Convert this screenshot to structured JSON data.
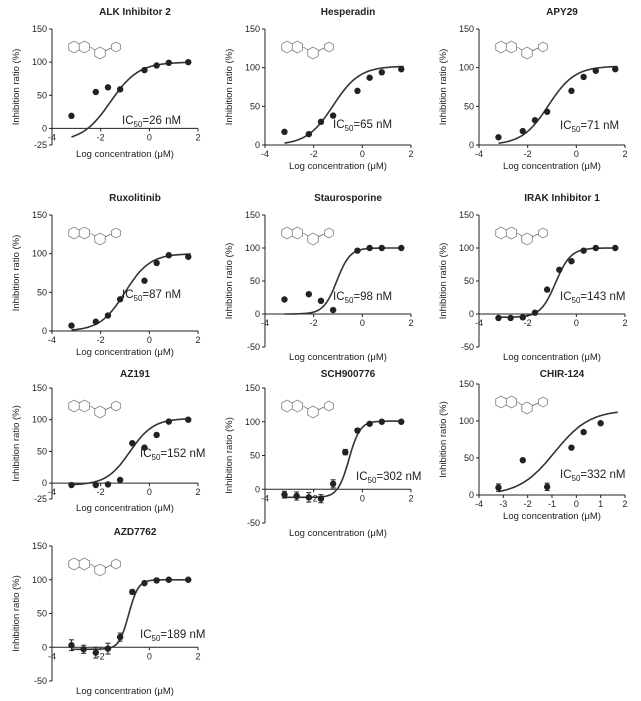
{
  "chart_data": [
    {
      "type": "scatter",
      "title": "ALK Inhibitor 2",
      "ic50_label": "IC50=26 nM",
      "ic50_text": "=26 nM",
      "ic50_value_nM": 26,
      "xlabel": "Log concentration (μM)",
      "ylabel": "Inhibition ratio (%)",
      "xlim": [
        -4,
        2
      ],
      "ylim": [
        -25,
        150
      ],
      "xticks": [
        -4,
        -2,
        0,
        2
      ],
      "yticks": [
        -25,
        0,
        50,
        100,
        150
      ],
      "x": [
        -3.2,
        -2.2,
        -1.7,
        -1.2,
        -0.2,
        0.3,
        0.8,
        1.6
      ],
      "y": [
        19,
        55,
        62,
        59,
        88,
        95,
        99,
        100
      ],
      "fit": {
        "bottom": -20,
        "top": 100,
        "log_ec50": -1.6,
        "hill": 0.75
      }
    },
    {
      "type": "scatter",
      "title": "Hesperadin",
      "ic50_label": "IC50=65 nM",
      "ic50_text": "=65 nM",
      "ic50_value_nM": 65,
      "xlabel": "Log concentration (μM)",
      "ylabel": "Inhibition ratio (%)",
      "xlim": [
        -4,
        2
      ],
      "ylim": [
        0,
        150
      ],
      "xticks": [
        -4,
        -2,
        0,
        2
      ],
      "yticks": [
        0,
        50,
        100,
        150
      ],
      "x": [
        -3.2,
        -2.2,
        -1.7,
        -1.2,
        -0.2,
        0.3,
        0.8,
        1.6
      ],
      "y": [
        17,
        14,
        30,
        38,
        70,
        87,
        94,
        98
      ],
      "fit": {
        "bottom": 0,
        "top": 102,
        "log_ec50": -1.2,
        "hill": 0.8
      }
    },
    {
      "type": "scatter",
      "title": "APY29",
      "ic50_label": "IC50=71 nM",
      "ic50_text": "=71 nM",
      "ic50_value_nM": 71,
      "xlabel": "Log concentration (μM)",
      "ylabel": "Inhibition ratio (%)",
      "xlim": [
        -4,
        2
      ],
      "ylim": [
        0,
        150
      ],
      "xticks": [
        -4,
        -2,
        0,
        2
      ],
      "yticks": [
        0,
        50,
        100,
        150
      ],
      "x": [
        -3.2,
        -2.2,
        -1.7,
        -1.2,
        -0.2,
        0.3,
        0.8,
        1.6
      ],
      "y": [
        10,
        18,
        32,
        43,
        70,
        88,
        96,
        98
      ],
      "fit": {
        "bottom": 0,
        "top": 102,
        "log_ec50": -1.15,
        "hill": 0.8
      }
    },
    {
      "type": "scatter",
      "title": "Ruxolitinib",
      "ic50_label": "IC50=87 nM",
      "ic50_text": "=87 nM",
      "ic50_value_nM": 87,
      "xlabel": "Log concentration (μM)",
      "ylabel": "Inhibition ratio (%)",
      "xlim": [
        -4,
        2
      ],
      "ylim": [
        0,
        150
      ],
      "xticks": [
        -4,
        -2,
        0,
        2
      ],
      "yticks": [
        0,
        50,
        100,
        150
      ],
      "x": [
        -3.2,
        -2.2,
        -1.7,
        -1.2,
        -0.2,
        0.3,
        0.8,
        1.6
      ],
      "y": [
        7,
        12,
        20,
        41,
        65,
        88,
        98,
        96
      ],
      "fit": {
        "bottom": 0,
        "top": 100,
        "log_ec50": -1.0,
        "hill": 0.85
      }
    },
    {
      "type": "scatter",
      "title": "Staurosporine",
      "ic50_label": "IC50=98 nM",
      "ic50_text": "=98 nM",
      "ic50_value_nM": 98,
      "xlabel": "Log concentration (μM)",
      "ylabel": "Inhibition ratio (%)",
      "xlim": [
        -4,
        2
      ],
      "ylim": [
        -50,
        150
      ],
      "xticks": [
        -4,
        -2,
        0,
        2
      ],
      "yticks": [
        -50,
        0,
        50,
        100,
        150
      ],
      "x": [
        -3.2,
        -2.2,
        -1.7,
        -1.2,
        -0.2,
        0.3,
        0.8,
        1.6
      ],
      "y": [
        22,
        30,
        20,
        6,
        96,
        100,
        100,
        100
      ],
      "fit": {
        "bottom": 0,
        "top": 100,
        "log_ec50": -1.05,
        "hill": 1.6
      }
    },
    {
      "type": "scatter",
      "title": "IRAK Inhibitor 1",
      "ic50_label": "IC50=143 nM",
      "ic50_text": "=143 nM",
      "ic50_value_nM": 143,
      "xlabel": "Log concentration (μM)",
      "ylabel": "Inhibition ratio (%)",
      "xlim": [
        -4,
        2
      ],
      "ylim": [
        -50,
        150
      ],
      "xticks": [
        -4,
        -2,
        0,
        2
      ],
      "yticks": [
        -50,
        0,
        50,
        100,
        150
      ],
      "x": [
        -3.2,
        -2.7,
        -2.2,
        -1.7,
        -1.2,
        -0.7,
        -0.2,
        0.3,
        0.8,
        1.6
      ],
      "y": [
        -6,
        -6,
        -5,
        2,
        37,
        67,
        80,
        96,
        100,
        100
      ],
      "fit": {
        "bottom": -5,
        "top": 100,
        "log_ec50": -0.85,
        "hill": 1.4
      }
    },
    {
      "type": "scatter",
      "title": "AZ191",
      "ic50_label": "IC50=152 nM",
      "ic50_text": "=152 nM",
      "ic50_value_nM": 152,
      "xlabel": "Log concentration (μM)",
      "ylabel": "Inhibition ratio (%)",
      "xlim": [
        -4,
        2
      ],
      "ylim": [
        -25,
        150
      ],
      "xticks": [
        -4,
        -2,
        0,
        2
      ],
      "yticks": [
        -25,
        0,
        50,
        100,
        150
      ],
      "x": [
        -3.2,
        -2.2,
        -1.7,
        -1.2,
        -0.7,
        -0.2,
        0.3,
        0.8,
        1.6
      ],
      "y": [
        -3,
        -3,
        -2,
        5,
        63,
        56,
        76,
        97,
        100
      ],
      "fit": {
        "bottom": -3,
        "top": 102,
        "log_ec50": -0.8,
        "hill": 0.9
      }
    },
    {
      "type": "scatter",
      "title": "SCH900776",
      "ic50_label": "IC50=302 nM",
      "ic50_text": "=302 nM",
      "ic50_value_nM": 302,
      "xlabel": "Log concentration (μM)",
      "ylabel": "Inhibition ratio (%)",
      "xlim": [
        -4,
        2
      ],
      "ylim": [
        -50,
        150
      ],
      "xticks": [
        -4,
        -2,
        0,
        2
      ],
      "yticks": [
        -50,
        0,
        50,
        100,
        150
      ],
      "x": [
        -3.2,
        -2.7,
        -2.2,
        -1.7,
        -1.2,
        -0.7,
        -0.2,
        0.3,
        0.8,
        1.6
      ],
      "y": [
        -8,
        -10,
        -12,
        -14,
        8,
        55,
        87,
        97,
        100,
        100
      ],
      "errors": [
        5,
        6,
        7,
        6,
        6,
        4,
        3,
        2,
        1,
        1
      ],
      "fit": {
        "bottom": -12,
        "top": 101,
        "log_ec50": -0.55,
        "hill": 1.9
      }
    },
    {
      "type": "scatter",
      "title": "CHIR-124",
      "ic50_label": "IC50=332 nM",
      "ic50_text": "=332 nM",
      "ic50_value_nM": 332,
      "xlabel": "Log concentration (μM)",
      "ylabel": "Inhibition ratio (%)",
      "xlim": [
        -4,
        2
      ],
      "ylim": [
        0,
        150
      ],
      "xticks": [
        -4,
        -3,
        -2,
        -1,
        0,
        1,
        2
      ],
      "yticks": [
        0,
        50,
        100,
        150
      ],
      "x": [
        -3.2,
        -2.2,
        -1.2,
        -0.2,
        0.3,
        1.0
      ],
      "y": [
        10,
        47,
        11,
        64,
        85,
        97
      ],
      "errors": [
        5,
        0,
        5,
        0,
        0,
        0
      ],
      "fit": {
        "bottom": 0,
        "top": 115,
        "log_ec50": -0.9,
        "hill": 0.6
      }
    },
    {
      "type": "scatter",
      "title": "AZD7762",
      "ic50_label": "IC50=189 nM",
      "ic50_text": "=189 nM",
      "ic50_value_nM": 189,
      "xlabel": "Log concentration (μM)",
      "ylabel": "Inhibition ratio (%)",
      "xlim": [
        -4,
        2
      ],
      "ylim": [
        -50,
        150
      ],
      "xticks": [
        -4,
        -2,
        0,
        2
      ],
      "yticks": [
        -50,
        0,
        50,
        100,
        150
      ],
      "x": [
        -3.2,
        -2.7,
        -2.2,
        -1.7,
        -1.2,
        -0.7,
        -0.2,
        0.3,
        0.8,
        1.6
      ],
      "y": [
        3,
        -3,
        -8,
        -2,
        15,
        82,
        95,
        99,
        100,
        100
      ],
      "errors": [
        8,
        6,
        8,
        8,
        6,
        3,
        2,
        1,
        1,
        1
      ],
      "fit": {
        "bottom": -3,
        "top": 100,
        "log_ec50": -0.85,
        "hill": 2.2
      }
    }
  ]
}
